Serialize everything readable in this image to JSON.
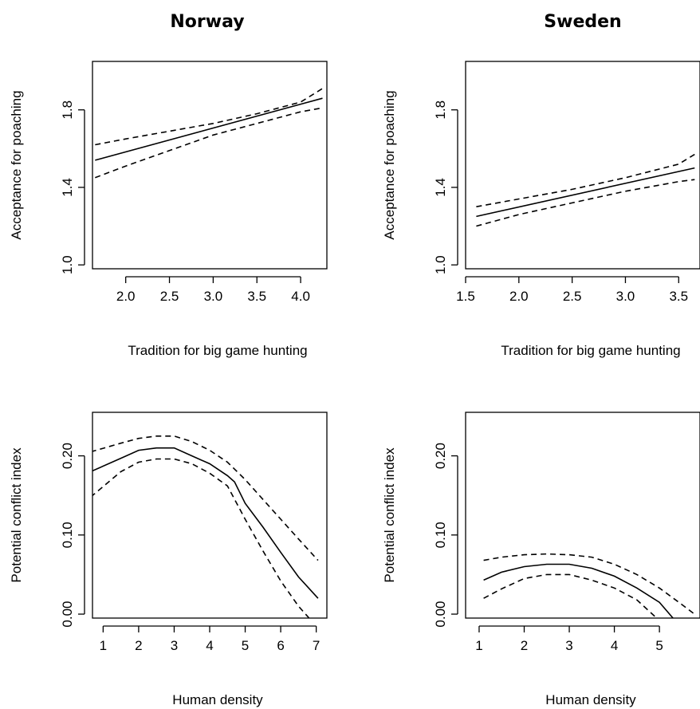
{
  "columns": [
    "Norway",
    "Sweden"
  ],
  "chart_data": [
    {
      "type": "line",
      "title": "Norway",
      "xlabel": "Tradition for big game hunting",
      "ylabel": "Acceptance for poaching",
      "xlim": [
        1.62,
        4.3
      ],
      "ylim": [
        0.98,
        2.05
      ],
      "xticks": [
        2.0,
        2.5,
        3.0,
        3.5,
        4.0
      ],
      "xtick_labels": [
        "2.0",
        "2.5",
        "3.0",
        "3.5",
        "4.0"
      ],
      "yticks": [
        1.0,
        1.4,
        1.8
      ],
      "ytick_labels": [
        "1.0",
        "1.4",
        "1.8"
      ],
      "series": [
        {
          "style": "solid",
          "x": [
            1.65,
            4.25
          ],
          "y": [
            1.54,
            1.86
          ]
        },
        {
          "style": "dashed",
          "x": [
            1.65,
            2.0,
            2.5,
            3.0,
            3.5,
            4.0,
            4.25
          ],
          "y": [
            1.62,
            1.65,
            1.69,
            1.73,
            1.78,
            1.84,
            1.91
          ]
        },
        {
          "style": "dashed",
          "x": [
            1.65,
            2.0,
            2.5,
            3.0,
            3.5,
            4.0,
            4.25
          ],
          "y": [
            1.45,
            1.51,
            1.59,
            1.67,
            1.73,
            1.79,
            1.81
          ]
        }
      ]
    },
    {
      "type": "line",
      "title": "Sweden",
      "xlabel": "Tradition for big game hunting",
      "ylabel": "Acceptance for poaching",
      "xlim": [
        1.5,
        3.7
      ],
      "ylim": [
        0.98,
        2.05
      ],
      "xticks": [
        1.5,
        2.0,
        2.5,
        3.0,
        3.5
      ],
      "xtick_labels": [
        "1.5",
        "2.0",
        "2.5",
        "3.0",
        "3.5"
      ],
      "yticks": [
        1.0,
        1.4,
        1.8
      ],
      "ytick_labels": [
        "1.0",
        "1.4",
        "1.8"
      ],
      "series": [
        {
          "style": "solid",
          "x": [
            1.6,
            3.65
          ],
          "y": [
            1.25,
            1.5
          ]
        },
        {
          "style": "dashed",
          "x": [
            1.6,
            2.0,
            2.5,
            3.0,
            3.5,
            3.65
          ],
          "y": [
            1.3,
            1.34,
            1.39,
            1.45,
            1.52,
            1.57
          ]
        },
        {
          "style": "dashed",
          "x": [
            1.6,
            2.0,
            2.5,
            3.0,
            3.5,
            3.65
          ],
          "y": [
            1.2,
            1.26,
            1.32,
            1.38,
            1.43,
            1.44
          ]
        }
      ]
    },
    {
      "type": "line",
      "xlabel": "Human density",
      "ylabel": "Potential conflict index",
      "xlim": [
        0.7,
        7.3
      ],
      "ylim": [
        -0.005,
        0.255
      ],
      "xticks": [
        1,
        2,
        3,
        4,
        5,
        6,
        7
      ],
      "xtick_labels": [
        "1",
        "2",
        "3",
        "4",
        "5",
        "6",
        "7"
      ],
      "yticks": [
        0.0,
        0.1,
        0.2
      ],
      "ytick_labels": [
        "0.00",
        "0.10",
        "0.20"
      ],
      "series": [
        {
          "style": "solid",
          "x": [
            0.65,
            1.5,
            2.0,
            2.5,
            3.0,
            3.5,
            4.0,
            4.5,
            4.7,
            5.0,
            5.5,
            6.0,
            6.5,
            7.05
          ],
          "y": [
            0.18,
            0.197,
            0.207,
            0.21,
            0.21,
            0.2,
            0.19,
            0.175,
            0.167,
            0.14,
            0.11,
            0.078,
            0.047,
            0.02
          ]
        },
        {
          "style": "dashed",
          "x": [
            0.65,
            1.5,
            2.0,
            2.5,
            3.0,
            3.5,
            4.0,
            4.5,
            5.0,
            5.5,
            6.0,
            6.5,
            7.05
          ],
          "y": [
            0.205,
            0.216,
            0.222,
            0.225,
            0.225,
            0.218,
            0.207,
            0.192,
            0.17,
            0.145,
            0.12,
            0.095,
            0.068
          ]
        },
        {
          "style": "dashed",
          "x": [
            0.65,
            1.5,
            2.0,
            2.5,
            3.0,
            3.5,
            4.0,
            4.5,
            5.0,
            5.5,
            6.0,
            6.5,
            6.8
          ],
          "y": [
            0.148,
            0.18,
            0.192,
            0.196,
            0.196,
            0.19,
            0.178,
            0.162,
            0.12,
            0.08,
            0.042,
            0.01,
            -0.005
          ]
        }
      ]
    },
    {
      "type": "line",
      "xlabel": "Human density",
      "ylabel": "Potential conflict index",
      "xlim": [
        0.7,
        5.9
      ],
      "ylim": [
        -0.005,
        0.255
      ],
      "xticks": [
        1,
        2,
        3,
        4,
        5
      ],
      "xtick_labels": [
        "1",
        "2",
        "3",
        "4",
        "5"
      ],
      "yticks": [
        0.0,
        0.1,
        0.2
      ],
      "ytick_labels": [
        "0.00",
        "0.10",
        "0.20"
      ],
      "series": [
        {
          "style": "solid",
          "x": [
            1.1,
            1.5,
            2.0,
            2.5,
            3.0,
            3.5,
            4.0,
            4.5,
            5.0,
            5.3
          ],
          "y": [
            0.043,
            0.053,
            0.06,
            0.063,
            0.063,
            0.058,
            0.048,
            0.033,
            0.015,
            -0.005
          ]
        },
        {
          "style": "dashed",
          "x": [
            1.1,
            1.5,
            2.0,
            2.5,
            3.0,
            3.5,
            4.0,
            4.5,
            5.0,
            5.5,
            5.8
          ],
          "y": [
            0.068,
            0.072,
            0.075,
            0.076,
            0.075,
            0.072,
            0.063,
            0.05,
            0.033,
            0.012,
            -0.001
          ]
        },
        {
          "style": "dashed",
          "x": [
            1.1,
            1.5,
            2.0,
            2.5,
            3.0,
            3.5,
            4.0,
            4.5,
            4.9
          ],
          "y": [
            0.02,
            0.032,
            0.045,
            0.05,
            0.05,
            0.043,
            0.033,
            0.018,
            -0.003
          ]
        }
      ]
    }
  ]
}
